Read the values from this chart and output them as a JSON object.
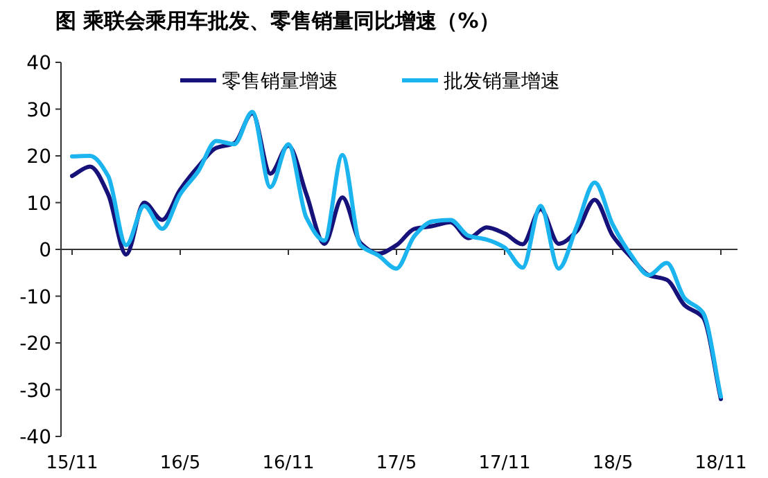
{
  "chart_data": {
    "type": "line",
    "title": "图  乘联会乘用车批发、零售销量同比增速（%）",
    "categories": [
      "15/11",
      null,
      null,
      null,
      null,
      null,
      "16/5",
      null,
      null,
      null,
      null,
      null,
      "16/11",
      null,
      null,
      null,
      null,
      null,
      "17/5",
      null,
      null,
      null,
      null,
      null,
      "17/11",
      null,
      null,
      null,
      null,
      null,
      "18/5",
      null,
      null,
      null,
      null,
      null,
      "18/11"
    ],
    "series": [
      {
        "name": "零售销量增速",
        "color": "#16127a",
        "values": [
          15.7,
          17.7,
          11.8,
          -1.1,
          10,
          6.3,
          12.8,
          17.7,
          21.7,
          22.7,
          29.1,
          16.2,
          22.2,
          11.8,
          1.2,
          11.1,
          1.4,
          -0.9,
          0.9,
          4.4,
          5.0,
          5.8,
          2.4,
          4.7,
          3.4,
          1.1,
          8.6,
          1.2,
          3.9,
          10.6,
          2.9,
          -1.6,
          -5.5,
          -6.5,
          -12,
          -14.5,
          -32
        ]
      },
      {
        "name": "批发销量增速",
        "color": "#1cb4ee",
        "values": [
          19.9,
          20,
          15.7,
          0.9,
          9.3,
          4.4,
          11.8,
          16.7,
          23.2,
          22.5,
          29.4,
          13.3,
          22.5,
          6.8,
          1.9,
          20.2,
          0.9,
          -1.3,
          -4.1,
          2.9,
          6.0,
          6.3,
          2.9,
          2.1,
          0.4,
          -3.9,
          9.3,
          -4.1,
          4.9,
          14.3,
          5.3,
          -1.1,
          -5.5,
          -2.9,
          -10.5,
          -13.5,
          -31.5
        ]
      }
    ],
    "ylim": [
      -40,
      40
    ],
    "yticks": [
      -40,
      -30,
      -20,
      -10,
      0,
      10,
      20,
      30,
      40
    ],
    "legend": "top right",
    "marker": "none",
    "line_style": "solid"
  }
}
